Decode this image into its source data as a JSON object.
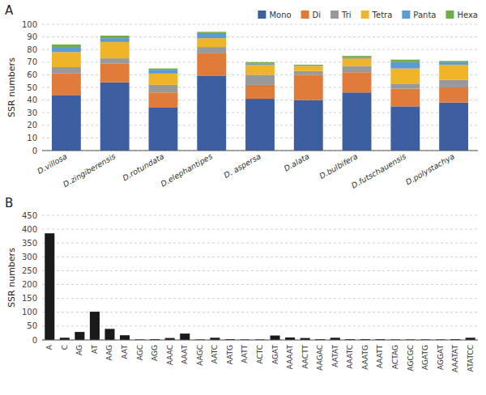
{
  "chart_data": [
    {
      "type": "bar",
      "title": "A",
      "stacked": true,
      "grid": true,
      "legend": "upper right",
      "categories": [
        "D.villosa",
        "D.zingiberensis",
        "D.rotundata",
        "D.elephantipes",
        "D. aspersa",
        "D.alata",
        "D.bulbifera",
        "D.futschauensis",
        "D.polystachya"
      ],
      "series": [
        {
          "name": "Mono",
          "color": "#3b5fa0",
          "values": [
            44,
            54,
            34,
            59,
            41,
            40,
            46,
            35,
            38
          ]
        },
        {
          "name": "Di",
          "color": "#e07b39",
          "values": [
            17,
            15,
            12,
            18,
            11,
            20,
            16,
            14,
            12
          ]
        },
        {
          "name": "Tri",
          "color": "#999999",
          "values": [
            5,
            4,
            6,
            5,
            8,
            3,
            5,
            4,
            6
          ]
        },
        {
          "name": "Tetra",
          "color": "#f0b429",
          "values": [
            12,
            13,
            9,
            7,
            8,
            4,
            6,
            12,
            12
          ]
        },
        {
          "name": "Panta",
          "color": "#5b9bd5",
          "values": [
            4,
            3,
            3,
            4,
            1,
            0,
            1,
            5,
            2
          ]
        },
        {
          "name": "Hexa",
          "color": "#70ad47",
          "values": [
            2,
            2,
            1,
            1,
            1,
            1,
            1,
            2,
            1
          ]
        }
      ],
      "ylabel": "SSR numbers",
      "ylim": [
        0,
        100
      ],
      "yticks": [
        0,
        10,
        20,
        30,
        40,
        50,
        60,
        70,
        80,
        90,
        100
      ]
    },
    {
      "type": "bar",
      "title": "B",
      "grid": true,
      "categories": [
        "A",
        "C",
        "AG",
        "AT",
        "AAG",
        "AAT",
        "AGC",
        "AGG",
        "AAAC",
        "AAAT",
        "AAGC",
        "AATC",
        "AATG",
        "AATT",
        "ACTC",
        "AGAT",
        "AAAAT",
        "AACTT",
        "AAGAC",
        "AATAT",
        "AAATC",
        "AAATG",
        "AAATT",
        "ACTAG",
        "AGCGC",
        "AGATG",
        "AGGAT",
        "AAATAT",
        "ATATCC"
      ],
      "values": [
        385,
        8,
        29,
        102,
        40,
        17,
        2,
        3,
        7,
        23,
        2,
        8,
        3,
        2,
        2,
        16,
        9,
        7,
        3,
        8,
        3,
        3,
        3,
        2,
        2,
        2,
        2,
        3,
        8
      ],
      "color": "#1a1a1a",
      "ylabel": "SSR numbers",
      "ylim": [
        0,
        450
      ],
      "yticks": [
        0,
        50,
        100,
        150,
        200,
        250,
        300,
        350,
        400,
        450
      ]
    }
  ]
}
